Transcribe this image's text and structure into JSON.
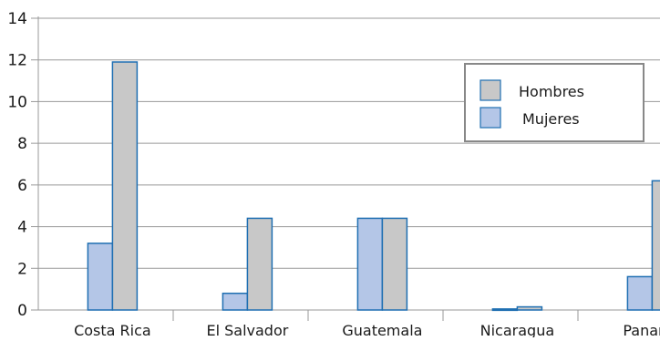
{
  "chart_data": {
    "type": "bar",
    "categories": [
      "Costa Rica",
      "El Salvador",
      "Guatemala",
      "Nicaragua",
      "Panamá"
    ],
    "series": [
      {
        "name": "Mujeres",
        "values": [
          3.2,
          0.8,
          4.4,
          0.05,
          1.6
        ]
      },
      {
        "name": "Hombres",
        "values": [
          11.9,
          4.4,
          4.4,
          0.15,
          6.2
        ]
      }
    ],
    "y_ticks": [
      0,
      2,
      4,
      6,
      8,
      10,
      12,
      14
    ],
    "ylim": [
      0,
      14
    ],
    "grid": true,
    "legend": {
      "placement": "top-right",
      "entries": [
        "Hombres",
        "Mujeres"
      ]
    },
    "colors": {
      "Mujeres": "#b4c6e7",
      "Hombres": "#c8c8c8",
      "bar_stroke": "#1f6fb2",
      "grid": "#999999",
      "legend_border": "#888888"
    }
  }
}
